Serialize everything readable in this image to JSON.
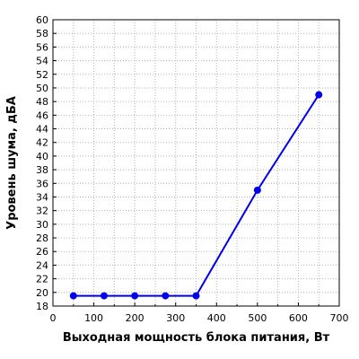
{
  "chart_data": {
    "type": "line",
    "title": "",
    "xlabel": "Выходная мощность блока питания, Вт",
    "ylabel": "Уровень шума, дБА",
    "xlim": [
      0,
      700
    ],
    "ylim": [
      18,
      60
    ],
    "xticks": [
      "0",
      "100",
      "200",
      "300",
      "400",
      "500",
      "600",
      "700"
    ],
    "yticks": [
      "18",
      "20",
      "22",
      "24",
      "26",
      "28",
      "30",
      "32",
      "34",
      "36",
      "38",
      "40",
      "42",
      "44",
      "46",
      "48",
      "50",
      "52",
      "54",
      "56",
      "58",
      "60"
    ],
    "grid": true,
    "legend": "none",
    "series": [
      {
        "color": "#0000ee",
        "x": [
          50,
          125,
          200,
          275,
          350,
          500,
          650
        ],
        "y": [
          19.5,
          19.5,
          19.5,
          19.5,
          19.5,
          35,
          49
        ]
      }
    ]
  }
}
